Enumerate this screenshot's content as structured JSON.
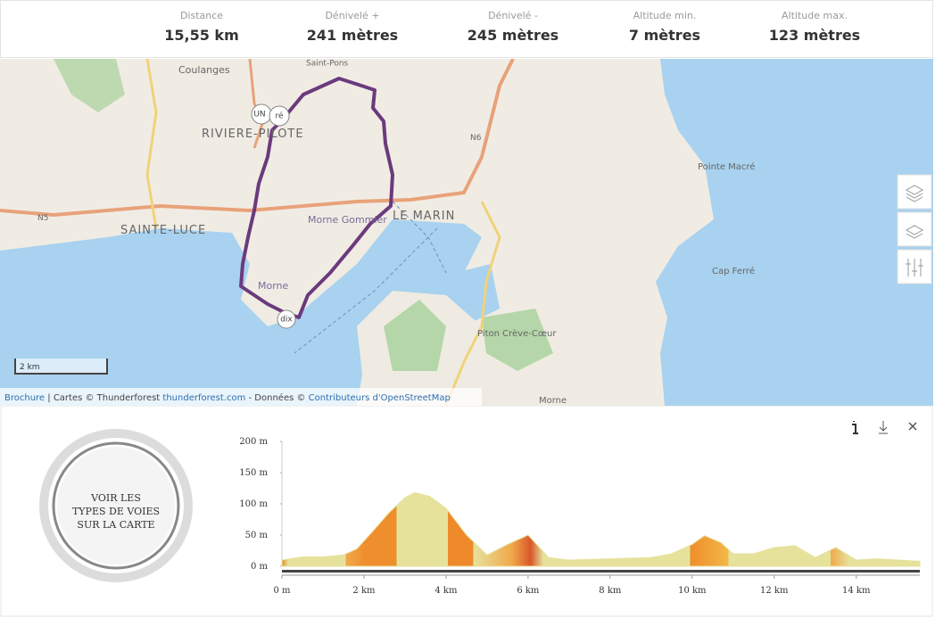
{
  "stats": [
    {
      "label": "Distance",
      "value": "15,55 km"
    },
    {
      "label": "Dénivelé +",
      "value": "241 mètres"
    },
    {
      "label": "Dénivelé -",
      "value": "245 mètres"
    },
    {
      "label": "Altitude min.",
      "value": "7 mètres"
    },
    {
      "label": "Altitude max.",
      "value": "123 mètres"
    }
  ],
  "map": {
    "labels": [
      "Coulanges",
      "RIVIERE-PILOTE",
      "SAINTE-LUCE",
      "Morne Gommier",
      "Morne",
      "LE MARIN",
      "Pointe Macré",
      "Cap Ferré",
      "Piton Crève-Cœur",
      "Morne",
      "Saint-Pons",
      "N5",
      "N6"
    ],
    "markers": [
      "UN",
      "ré",
      "dix"
    ],
    "scale": "2 km",
    "attribution": [
      "Brochure",
      " | Cartes © Thunderforest ",
      "thunderforest.com",
      " - Données © ",
      "Contributeurs d'OpenStreetMap"
    ]
  },
  "panel": {
    "button": [
      "VOIR LES",
      "TYPES DE VOIES",
      "SUR LA CARTE"
    ]
  },
  "chart_data": {
    "type": "area",
    "x": [
      0,
      0.5,
      1,
      1.5,
      1.83,
      2.2,
      2.6,
      3.0,
      3.24,
      3.6,
      4.0,
      4.5,
      5.0,
      5.5,
      6.0,
      6.5,
      7.0,
      8.0,
      9.0,
      9.5,
      10.0,
      10.3,
      10.7,
      11.0,
      11.5,
      12.0,
      12.5,
      13.0,
      13.5,
      14.0,
      14.5,
      15.0,
      15.55
    ],
    "values": [
      10,
      15,
      15,
      18,
      28,
      55,
      85,
      110,
      118,
      112,
      93,
      50,
      18,
      35,
      50,
      14,
      10,
      12,
      14,
      20,
      35,
      49,
      38,
      20,
      20,
      30,
      33,
      14,
      30,
      10,
      12,
      10,
      8
    ],
    "color": "#e6e29c",
    "xlim": [
      0,
      15.55
    ],
    "ylim": [
      0,
      200
    ],
    "xticks": [
      {
        "value": 0,
        "label": "0 m"
      },
      {
        "value": 2,
        "label": "2 km"
      },
      {
        "value": 4,
        "label": "4 km"
      },
      {
        "value": 6,
        "label": "6 km"
      },
      {
        "value": 8,
        "label": "8 km"
      },
      {
        "value": 10,
        "label": "10 km"
      },
      {
        "value": 12,
        "label": "12 km"
      },
      {
        "value": 14,
        "label": "14 km"
      }
    ],
    "yticks": [
      {
        "value": 0,
        "label": "0 m"
      },
      {
        "value": 50,
        "label": "50 m"
      },
      {
        "value": 100,
        "label": "100 m"
      },
      {
        "value": 150,
        "label": "150 m"
      },
      {
        "value": 200,
        "label": "200 m"
      }
    ]
  }
}
